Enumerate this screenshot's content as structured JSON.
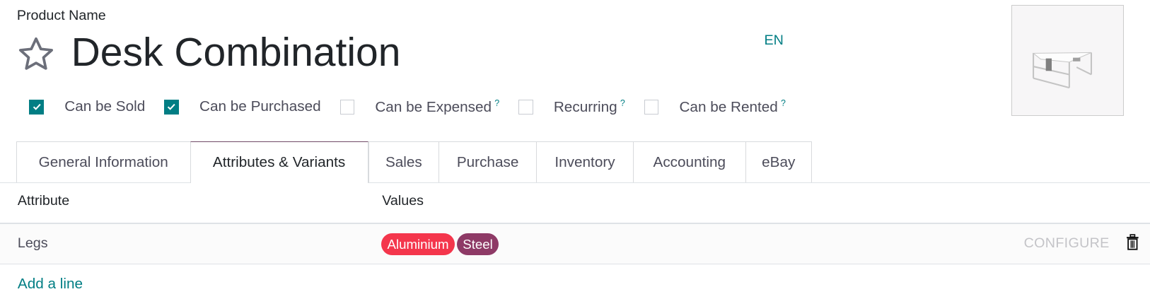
{
  "header": {
    "field_label": "Product Name",
    "product_name": "Desk Combination",
    "language": "EN",
    "favorite_icon": "star-outline-icon"
  },
  "options": [
    {
      "label": "Can be Sold",
      "checked": true,
      "help": ""
    },
    {
      "label": "Can be Purchased",
      "checked": true,
      "help": ""
    },
    {
      "label": "Can be Expensed",
      "checked": false,
      "help": "?"
    },
    {
      "label": "Recurring",
      "checked": false,
      "help": "?"
    },
    {
      "label": "Can be Rented",
      "checked": false,
      "help": "?"
    }
  ],
  "tabs": [
    {
      "label": "General Information",
      "active": false
    },
    {
      "label": "Attributes & Variants",
      "active": true
    },
    {
      "label": "Sales",
      "active": false
    },
    {
      "label": "Purchase",
      "active": false
    },
    {
      "label": "Inventory",
      "active": false
    },
    {
      "label": "Accounting",
      "active": false
    },
    {
      "label": "eBay",
      "active": false
    }
  ],
  "table": {
    "columns": [
      "Attribute",
      "Values"
    ],
    "rows": [
      {
        "attribute": "Legs",
        "values": [
          {
            "label": "Aluminium",
            "color": "#f4364c"
          },
          {
            "label": "Steel",
            "color": "#8e3a66"
          }
        ],
        "action": "CONFIGURE"
      }
    ],
    "add_line": "Add a line"
  },
  "colors": {
    "accent": "#017e84",
    "active_tab_border": "#714b67"
  }
}
